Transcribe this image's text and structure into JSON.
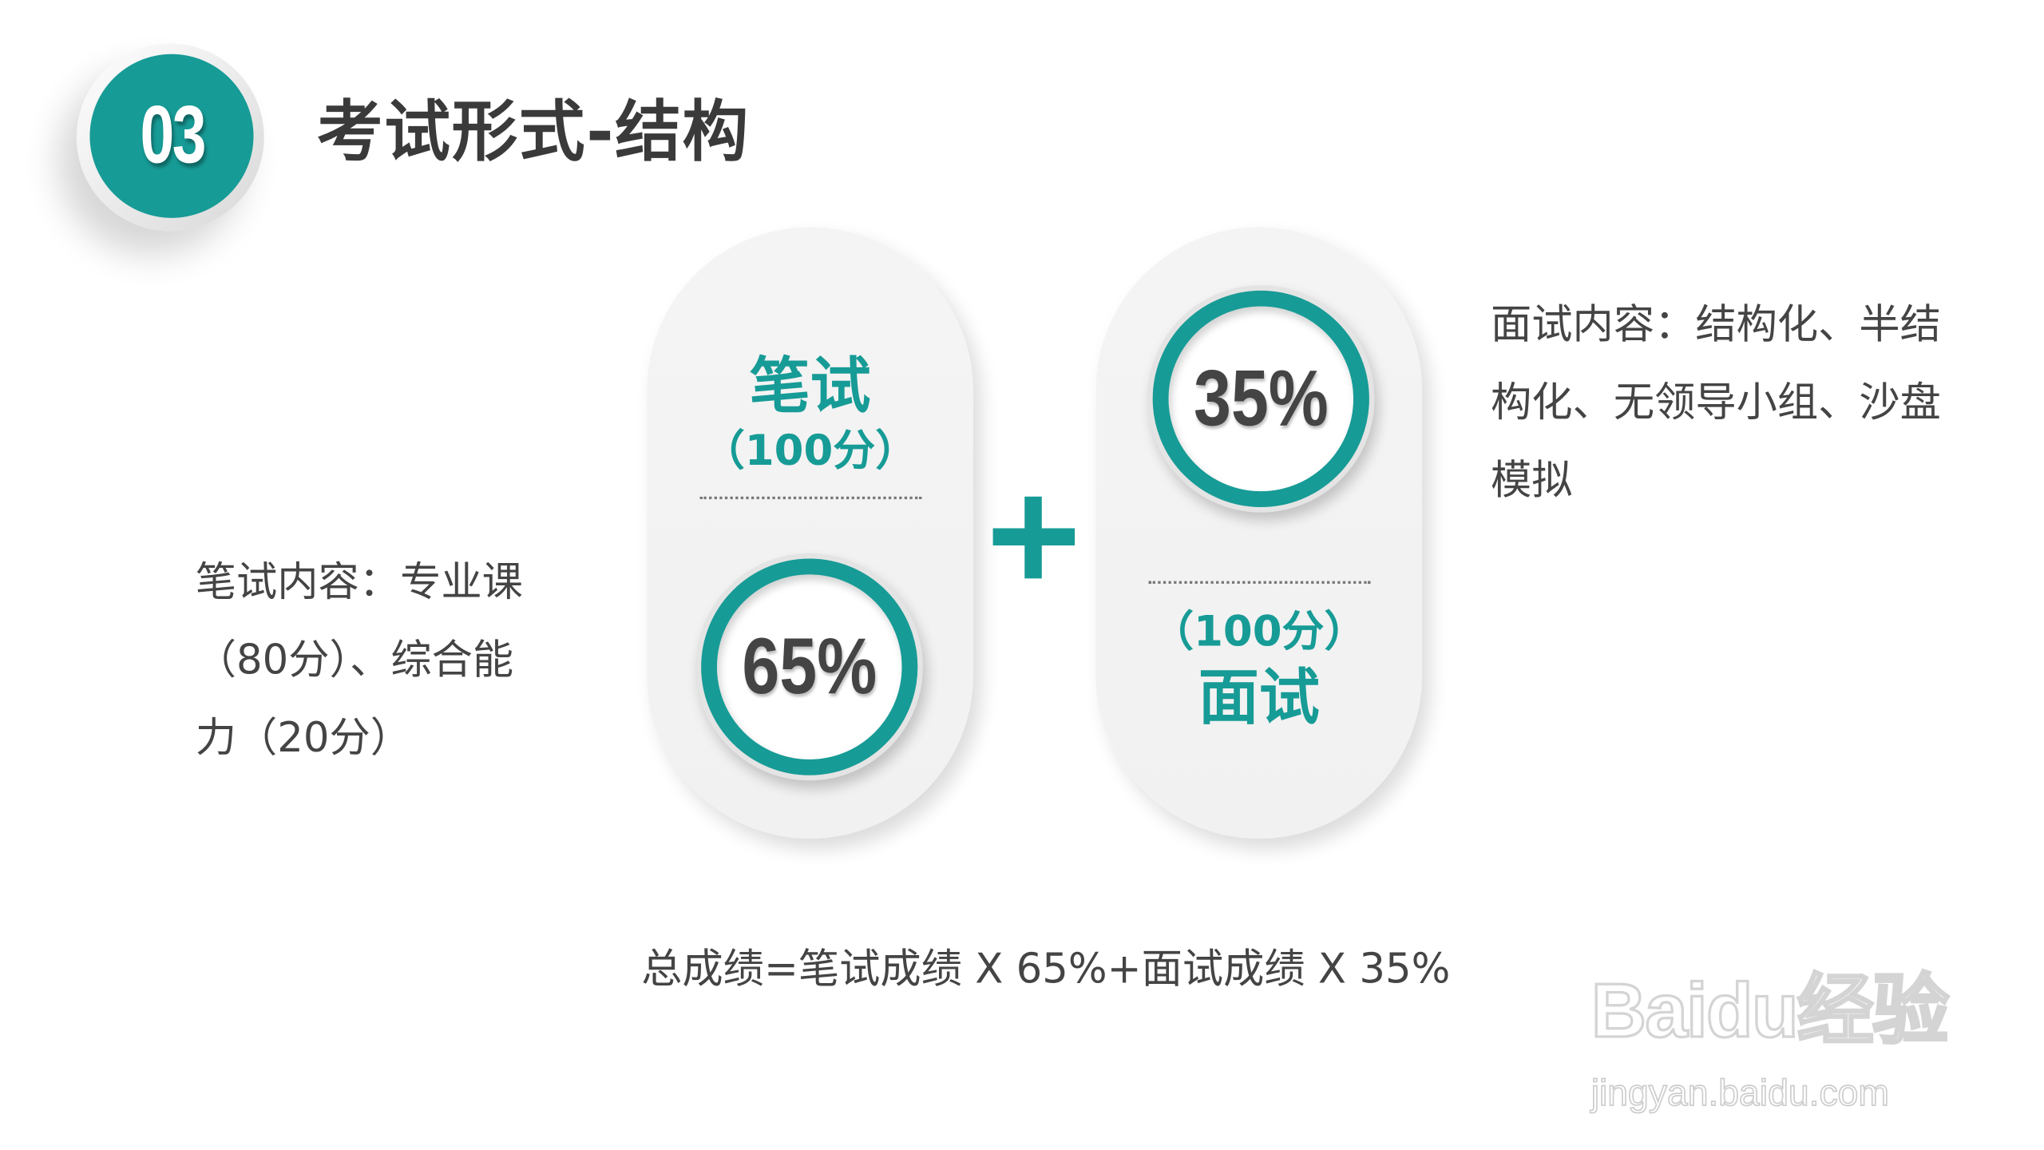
{
  "badge": {
    "number": "03"
  },
  "title": "考试形式-结构",
  "written": {
    "label": "笔试",
    "score": "（100分）",
    "percent": "65%"
  },
  "interview": {
    "label": "面试",
    "score": "（100分）",
    "percent": "35%"
  },
  "plus_symbol": "+",
  "left_description": [
    "笔试内容：专业课",
    "（80分）、综合能",
    "力（20分）"
  ],
  "right_description": [
    "面试内容：结构化、半结",
    "构化、无领导小组、沙盘",
    "模拟"
  ],
  "formula": "总成绩=笔试成绩 X 65%+面试成绩 X 35%",
  "watermark": {
    "brand": "Baidu经验",
    "url": "jingyan.baidu.com"
  },
  "colors": {
    "accent": "#179b96",
    "text": "#444444",
    "title": "#3a3a3a",
    "pill": "#f3f3f3"
  }
}
